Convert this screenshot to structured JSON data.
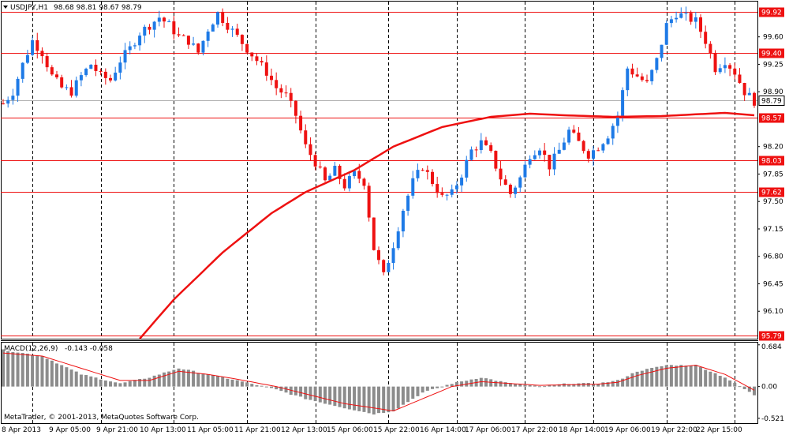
{
  "window": {
    "symbol_title": "USDJPY,H1",
    "ohlc": "98.68 98.81 98.67 98.79",
    "macd_title": "MACD(12,26,9)",
    "macd_values": "-0.143 -0.058",
    "copyright": "MetaTrader, © 2001-2013, MetaQuotes Software Corp."
  },
  "colors": {
    "background": "#ffffff",
    "bull_candle": "#1e7ae6",
    "bear_candle": "#ee1111",
    "level_line": "#ee1111",
    "moving_average": "#ee1111",
    "grid_vertical": "#000000",
    "macd_histogram": "#8c8c8c",
    "macd_signal": "#ee1111",
    "current_price_line": "#b0b0b0"
  },
  "chart_data": [
    {
      "type": "candlestick",
      "title": "USDJPY,H1",
      "y_ticks": [
        "99.60",
        "99.25",
        "98.90",
        "98.20",
        "97.85",
        "97.50",
        "97.15",
        "96.80",
        "96.45",
        "96.10"
      ],
      "ylim": [
        95.75,
        100.05
      ],
      "x_ticks": [
        "8 Apr 2013",
        "9 Apr 05:00",
        "9 Apr 21:00",
        "10 Apr 13:00",
        "11 Apr 05:00",
        "11 Apr 21:00",
        "12 Apr 13:00",
        "15 Apr 06:00",
        "15 Apr 22:00",
        "16 Apr 14:00",
        "17 Apr 06:00",
        "17 Apr 22:00",
        "18 Apr 14:00",
        "19 Apr 06:00",
        "19 Apr 22:00",
        "22 Apr 15:00"
      ],
      "horizontal_levels": [
        "99.92",
        "99.40",
        "98.57",
        "98.03",
        "97.62",
        "95.79"
      ],
      "current_price": "98.79",
      "grid": "vertical dashed lines at day separators",
      "close_path": [
        [
          0,
          98.75
        ],
        [
          2,
          98.9
        ],
        [
          4,
          99.25
        ],
        [
          6,
          99.55
        ],
        [
          8,
          99.4
        ],
        [
          10,
          99.1
        ],
        [
          12,
          98.95
        ],
        [
          14,
          98.9
        ],
        [
          16,
          99.1
        ],
        [
          18,
          99.25
        ],
        [
          20,
          99.1
        ],
        [
          22,
          99.05
        ],
        [
          24,
          99.3
        ],
        [
          26,
          99.45
        ],
        [
          28,
          99.65
        ],
        [
          30,
          99.75
        ],
        [
          32,
          99.85
        ],
        [
          34,
          99.75
        ],
        [
          36,
          99.6
        ],
        [
          38,
          99.55
        ],
        [
          40,
          99.4
        ],
        [
          42,
          99.7
        ],
        [
          44,
          99.9
        ],
        [
          46,
          99.75
        ],
        [
          48,
          99.6
        ],
        [
          50,
          99.45
        ],
        [
          52,
          99.3
        ],
        [
          54,
          99.15
        ],
        [
          56,
          98.95
        ],
        [
          58,
          98.85
        ],
        [
          60,
          98.6
        ],
        [
          62,
          98.2
        ],
        [
          64,
          98.0
        ],
        [
          66,
          97.75
        ],
        [
          68,
          97.9
        ],
        [
          70,
          97.7
        ],
        [
          72,
          97.85
        ],
        [
          74,
          97.75
        ],
        [
          76,
          96.9
        ],
        [
          78,
          96.55
        ],
        [
          80,
          96.95
        ],
        [
          82,
          97.4
        ],
        [
          84,
          97.75
        ],
        [
          86,
          97.95
        ],
        [
          88,
          97.75
        ],
        [
          90,
          97.55
        ],
        [
          92,
          97.6
        ],
        [
          94,
          97.85
        ],
        [
          96,
          98.15
        ],
        [
          98,
          98.25
        ],
        [
          100,
          98.1
        ],
        [
          102,
          97.8
        ],
        [
          104,
          97.6
        ],
        [
          106,
          97.8
        ],
        [
          108,
          98.1
        ],
        [
          110,
          98.2
        ],
        [
          112,
          97.95
        ],
        [
          114,
          98.15
        ],
        [
          116,
          98.4
        ],
        [
          118,
          98.25
        ],
        [
          120,
          98.1
        ],
        [
          122,
          98.2
        ],
        [
          124,
          98.35
        ],
        [
          126,
          98.6
        ],
        [
          128,
          99.2
        ],
        [
          130,
          99.1
        ],
        [
          132,
          99.0
        ],
        [
          134,
          99.3
        ],
        [
          136,
          99.75
        ],
        [
          138,
          99.9
        ],
        [
          140,
          99.85
        ],
        [
          142,
          99.8
        ],
        [
          144,
          99.55
        ],
        [
          146,
          99.2
        ],
        [
          148,
          99.3
        ],
        [
          150,
          99.15
        ],
        [
          152,
          98.9
        ],
        [
          154,
          98.78
        ]
      ],
      "series": [
        {
          "name": "",
          "kind": "moving_average",
          "values": [
            [
              28,
              95.75
            ],
            [
              35,
              96.25
            ],
            [
              45,
              96.85
            ],
            [
              55,
              97.35
            ],
            [
              62,
              97.62
            ],
            [
              72,
              97.9
            ],
            [
              80,
              98.2
            ],
            [
              90,
              98.45
            ],
            [
              100,
              98.58
            ],
            [
              108,
              98.62
            ],
            [
              115,
              98.6
            ],
            [
              125,
              98.58
            ],
            [
              135,
              98.59
            ],
            [
              148,
              98.63
            ],
            [
              154,
              98.6
            ]
          ]
        }
      ]
    },
    {
      "type": "bar",
      "title": "MACD(12,26,9)",
      "y_ticks": [
        "0.684",
        "0.00",
        "-0.521"
      ],
      "ylim": [
        -0.6,
        0.72
      ],
      "histogram_path": [
        [
          0,
          0.6
        ],
        [
          8,
          0.5
        ],
        [
          16,
          0.2
        ],
        [
          24,
          0.05
        ],
        [
          30,
          0.15
        ],
        [
          36,
          0.3
        ],
        [
          42,
          0.2
        ],
        [
          48,
          0.1
        ],
        [
          56,
          -0.05
        ],
        [
          62,
          -0.2
        ],
        [
          70,
          -0.35
        ],
        [
          76,
          -0.45
        ],
        [
          80,
          -0.4
        ],
        [
          86,
          -0.1
        ],
        [
          92,
          0.05
        ],
        [
          98,
          0.15
        ],
        [
          104,
          0.05
        ],
        [
          110,
          0.0
        ],
        [
          116,
          0.05
        ],
        [
          122,
          0.05
        ],
        [
          126,
          0.1
        ],
        [
          130,
          0.25
        ],
        [
          136,
          0.35
        ],
        [
          142,
          0.35
        ],
        [
          148,
          0.15
        ],
        [
          154,
          -0.14
        ]
      ],
      "series": [
        {
          "name": "",
          "kind": "signal",
          "values": [
            [
              0,
              0.55
            ],
            [
              8,
              0.5
            ],
            [
              16,
              0.3
            ],
            [
              24,
              0.1
            ],
            [
              30,
              0.1
            ],
            [
              36,
              0.25
            ],
            [
              42,
              0.2
            ],
            [
              48,
              0.12
            ],
            [
              56,
              0.0
            ],
            [
              62,
              -0.12
            ],
            [
              70,
              -0.28
            ],
            [
              76,
              -0.35
            ],
            [
              80,
              -0.4
            ],
            [
              86,
              -0.2
            ],
            [
              92,
              0.0
            ],
            [
              98,
              0.08
            ],
            [
              104,
              0.05
            ],
            [
              110,
              0.02
            ],
            [
              116,
              0.03
            ],
            [
              122,
              0.04
            ],
            [
              126,
              0.07
            ],
            [
              130,
              0.18
            ],
            [
              136,
              0.3
            ],
            [
              142,
              0.35
            ],
            [
              148,
              0.2
            ],
            [
              154,
              -0.06
            ]
          ]
        }
      ]
    }
  ]
}
